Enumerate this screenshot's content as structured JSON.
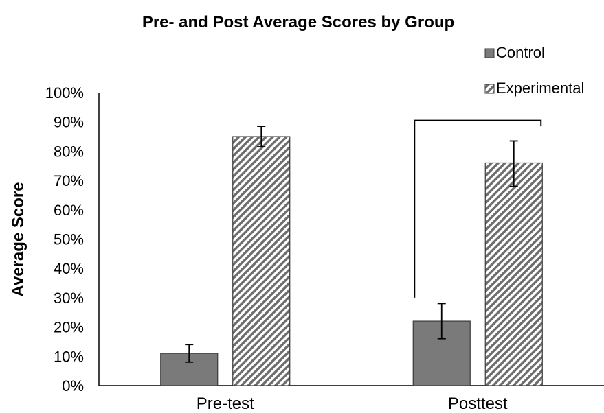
{
  "chart_data": {
    "type": "bar",
    "title": "Pre- and Post Average Scores by Group",
    "ylabel": "Average Score",
    "xlabel": "",
    "categories": [
      "Pre-test",
      "Posttest"
    ],
    "ylim": [
      0,
      1
    ],
    "yticks": [
      0,
      0.1,
      0.2,
      0.3,
      0.4,
      0.5,
      0.6,
      0.7,
      0.8,
      0.9,
      1.0
    ],
    "ytick_labels": [
      "0%",
      "10%",
      "20%",
      "30%",
      "40%",
      "50%",
      "60%",
      "70%",
      "80%",
      "90%",
      "100%"
    ],
    "series": [
      {
        "name": "Control",
        "values": [
          0.11,
          0.22
        ],
        "error_low": [
          0.08,
          0.16
        ],
        "error_high": [
          0.14,
          0.28
        ],
        "color": "#7a7a7a",
        "pattern": "solid"
      },
      {
        "name": "Experimental",
        "values": [
          0.85,
          0.76
        ],
        "error_low": [
          0.815,
          0.68
        ],
        "error_high": [
          0.885,
          0.835
        ],
        "color": "#7a7a7a",
        "pattern": "diagonal-stripes"
      }
    ],
    "legend": {
      "position": "top-right"
    },
    "grid": false,
    "significance_bracket": {
      "category": "Posttest"
    }
  }
}
